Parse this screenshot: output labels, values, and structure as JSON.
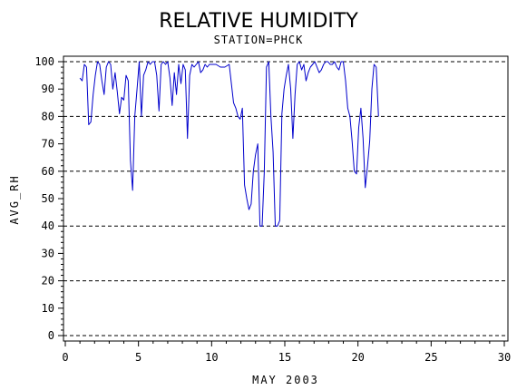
{
  "chart_data": {
    "type": "line",
    "title": "RELATIVE HUMIDITY",
    "subtitle": "STATION=PHCK",
    "xlabel": "MAY 2003",
    "ylabel": "AVG_RH",
    "xlim": [
      0,
      30
    ],
    "ylim": [
      0,
      100
    ],
    "xticks": [
      0,
      5,
      10,
      15,
      20,
      25,
      30
    ],
    "yticks": [
      0,
      10,
      20,
      30,
      40,
      50,
      60,
      70,
      80,
      90,
      100
    ],
    "gridlines_y": [
      0,
      20,
      40,
      60,
      80,
      100
    ],
    "grid_style": "dashed horizontal",
    "series_color": "#0000cc",
    "series": [
      {
        "x": [
          1.0,
          1.15,
          1.3,
          1.45,
          1.6,
          1.75,
          1.9,
          2.05,
          2.2,
          2.35,
          2.5,
          2.65,
          2.8,
          2.95,
          3.1,
          3.25,
          3.4,
          3.55,
          3.7,
          3.85,
          4.0,
          4.15,
          4.3,
          4.45,
          4.6,
          4.75,
          4.9,
          5.05,
          5.2,
          5.35,
          5.5,
          5.65,
          5.8,
          5.95,
          6.1,
          6.25,
          6.4,
          6.55,
          6.7,
          6.85,
          7.0,
          7.15,
          7.3,
          7.45,
          7.6,
          7.75,
          7.9,
          8.05,
          8.2,
          8.35,
          8.5,
          8.65,
          8.8,
          8.95,
          9.1,
          9.25,
          9.4,
          9.55,
          9.7,
          9.85,
          10.0,
          10.3,
          10.6,
          10.9,
          11.2,
          11.5,
          11.65,
          11.8,
          11.95,
          12.1,
          12.25,
          12.4,
          12.55,
          12.7,
          12.85,
          13.0,
          13.15,
          13.3,
          13.45,
          13.6,
          13.75,
          13.9,
          14.05,
          14.2,
          14.35,
          14.5,
          14.65,
          14.8,
          14.95,
          15.1,
          15.25,
          15.4,
          15.55,
          15.7,
          15.85,
          16.0,
          16.15,
          16.3,
          16.45,
          16.6,
          16.75,
          16.9,
          17.05,
          17.2,
          17.35,
          17.5,
          17.65,
          17.8,
          17.95,
          18.1,
          18.25,
          18.4,
          18.55,
          18.7,
          18.85,
          19.0,
          19.15,
          19.3,
          19.45,
          19.6,
          19.75,
          19.9,
          20.05,
          20.2,
          20.35,
          20.5,
          20.65,
          20.8,
          20.95,
          21.1,
          21.25,
          21.4
        ],
        "y": [
          94,
          93,
          99,
          98,
          77,
          78,
          88,
          95,
          100,
          99,
          93,
          88,
          98,
          100,
          99,
          90,
          96,
          89,
          81,
          87,
          86,
          95,
          93,
          64,
          53,
          80,
          90,
          100,
          80,
          95,
          97,
          100,
          99,
          100,
          100,
          95,
          82,
          99,
          100,
          99,
          100,
          94,
          84,
          96,
          88,
          99,
          92,
          99,
          97,
          72,
          95,
          99,
          98,
          99,
          100,
          96,
          97,
          99,
          98,
          99,
          99,
          99,
          98,
          98,
          99,
          85,
          83,
          80,
          79,
          83,
          55,
          50,
          46,
          48,
          60,
          66,
          70,
          40,
          40,
          60,
          98,
          100,
          80,
          67,
          40,
          40,
          42,
          81,
          90,
          95,
          99,
          90,
          72,
          88,
          99,
          100,
          97,
          99,
          93,
          96,
          98,
          99,
          100,
          98,
          96,
          97,
          99,
          100,
          100,
          99,
          99,
          100,
          98,
          97,
          100,
          100,
          93,
          83,
          80,
          71,
          60,
          59,
          76,
          83,
          72,
          54,
          62,
          71,
          90,
          99,
          98,
          80
        ]
      }
    ]
  }
}
